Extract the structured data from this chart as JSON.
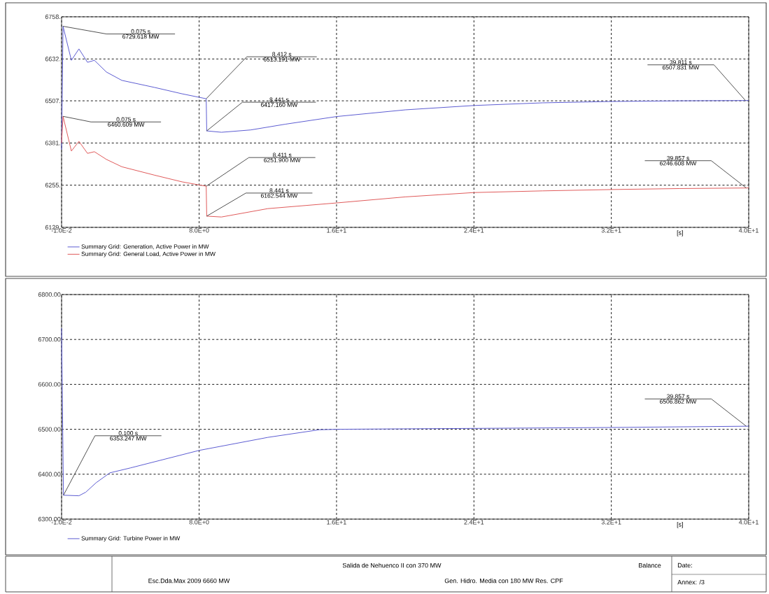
{
  "chart_data": [
    {
      "type": "line",
      "xlim": [
        -0.01,
        40
      ],
      "ylim": [
        6129,
        6758
      ],
      "xlabel": "[s]",
      "grid": true,
      "legend": "bottom",
      "xticks": [
        {
          "value": -0.01,
          "label": "-1.0E-2"
        },
        {
          "value": 8,
          "label": "8.0E+0"
        },
        {
          "value": 16,
          "label": "1.6E+1"
        },
        {
          "value": 24,
          "label": "2.4E+1"
        },
        {
          "value": 32,
          "label": "3.2E+1"
        },
        {
          "value": 40,
          "label": "4.0E+1"
        }
      ],
      "yticks": [
        {
          "value": 6129,
          "label": "6129."
        },
        {
          "value": 6255,
          "label": "6255."
        },
        {
          "value": 6381,
          "label": "6381."
        },
        {
          "value": 6507,
          "label": "6507."
        },
        {
          "value": 6632,
          "label": "6632."
        },
        {
          "value": 6758,
          "label": "6758."
        }
      ],
      "series": [
        {
          "name": "Summary Grid: Generation, Active Power in MW",
          "color": "#5c5cd2",
          "x": [
            -0.01,
            0.075,
            0.56,
            1.0,
            1.5,
            1.9,
            2.6,
            3.5,
            5.4,
            7.0,
            8.412,
            8.441,
            9.3,
            11,
            13,
            16,
            20,
            24,
            28,
            32,
            36,
            39.811,
            40
          ],
          "values": [
            6361,
            6729.618,
            6628,
            6662,
            6622,
            6628,
            6593,
            6568,
            6547,
            6528,
            6513.191,
            6417.16,
            6413,
            6420,
            6437,
            6460,
            6480,
            6493,
            6501,
            6505,
            6507,
            6507.831,
            6508
          ]
        },
        {
          "name": "Summary Grid: General Load, Active Power in MW",
          "color": "#e05a5a",
          "x": [
            -0.01,
            0.075,
            0.56,
            1.0,
            1.5,
            1.9,
            2.6,
            3.5,
            5.4,
            7.0,
            8.411,
            8.441,
            9.3,
            12,
            16,
            20,
            24,
            28,
            32,
            36,
            39.857,
            40
          ],
          "values": [
            6381,
            6460.609,
            6357,
            6386,
            6350,
            6355,
            6332,
            6310,
            6285,
            6265,
            6251.9,
            6162.544,
            6160,
            6185,
            6202,
            6220,
            6233,
            6238,
            6242,
            6245,
            6246.608,
            6247
          ]
        }
      ],
      "annotations": [
        {
          "text": "0.075 s",
          "x": 0.075,
          "y": 6729.618
        },
        {
          "text": "6729.618 MW",
          "x": 0.075,
          "y": 6729.618
        },
        {
          "text": "8.412 s",
          "x": 8.412,
          "y": 6513.191
        },
        {
          "text": "6513.191 MW",
          "x": 8.412,
          "y": 6513.191
        },
        {
          "text": "8.441 s",
          "x": 8.441,
          "y": 6417.16
        },
        {
          "text": "6417.160 MW",
          "x": 8.441,
          "y": 6417.16
        },
        {
          "text": "0.075 s",
          "x": 0.075,
          "y": 6460.609
        },
        {
          "text": "6460.609 MW",
          "x": 0.075,
          "y": 6460.609
        },
        {
          "text": "8.411 s",
          "x": 8.411,
          "y": 6251.9
        },
        {
          "text": "6251.900 MW",
          "x": 8.411,
          "y": 6251.9
        },
        {
          "text": "8.441 s",
          "x": 8.441,
          "y": 6162.544
        },
        {
          "text": "6162.544 MW",
          "x": 8.441,
          "y": 6162.544
        },
        {
          "text": "39.811 s",
          "x": 39.811,
          "y": 6507.831
        },
        {
          "text": "6507.831 MW",
          "x": 39.811,
          "y": 6507.831
        },
        {
          "text": "39.857 s",
          "x": 39.857,
          "y": 6246.608
        },
        {
          "text": "6246.608 MW",
          "x": 39.857,
          "y": 6246.608
        }
      ]
    },
    {
      "type": "line",
      "xlim": [
        -0.01,
        40
      ],
      "ylim": [
        6300,
        6800
      ],
      "xlabel": "[s]",
      "grid": true,
      "legend": "bottom",
      "xticks": [
        {
          "value": -0.01,
          "label": "-1.0E-2"
        },
        {
          "value": 8,
          "label": "8.0E+0"
        },
        {
          "value": 16,
          "label": "1.6E+1"
        },
        {
          "value": 24,
          "label": "2.4E+1"
        },
        {
          "value": 32,
          "label": "3.2E+1"
        },
        {
          "value": 40,
          "label": "4.0E+1"
        }
      ],
      "yticks": [
        {
          "value": 6300,
          "label": "6300.00"
        },
        {
          "value": 6400,
          "label": "6400.00"
        },
        {
          "value": 6500,
          "label": "6500.00"
        },
        {
          "value": 6600,
          "label": "6600.00"
        },
        {
          "value": 6700,
          "label": "6700.00"
        },
        {
          "value": 6800,
          "label": "6800.00"
        }
      ],
      "series": [
        {
          "name": "Summary Grid: Turbine Power in MW",
          "color": "#5c5cd2",
          "x": [
            -0.01,
            0.1,
            1.0,
            1.4,
            2.0,
            2.8,
            4,
            8,
            12,
            15,
            16,
            24,
            32,
            39.857,
            40
          ],
          "values": [
            6725,
            6353.247,
            6352,
            6360,
            6381,
            6403,
            6414,
            6453,
            6482,
            6499,
            6500,
            6502,
            6504,
            6506.862,
            6507
          ]
        }
      ],
      "annotations": [
        {
          "text": "0.100 s",
          "x": 0.1,
          "y": 6353.247
        },
        {
          "text": "6353.247 MW",
          "x": 0.1,
          "y": 6353.247
        },
        {
          "text": "39.857 s",
          "x": 39.857,
          "y": 6506.862
        },
        {
          "text": "6506.862 MW",
          "x": 39.857,
          "y": 6506.862
        },
        "Salida de Nehuenco II con 370 MW",
        "Balance",
        "Esc.Dda.Max 2009 6660 MW",
        "Gen. Hidro. Media con 180 MW Res. CPF",
        "Date:",
        "Annex: /3"
      ]
    }
  ]
}
